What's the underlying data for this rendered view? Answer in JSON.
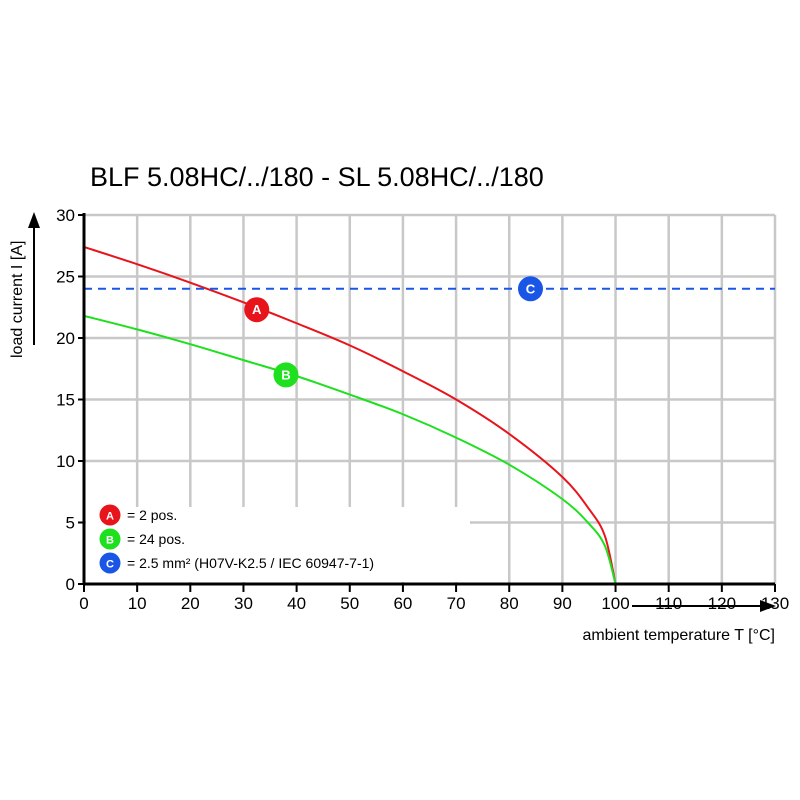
{
  "chart_data": {
    "type": "line",
    "title": "BLF 5.08HC/../180 - SL 5.08HC/../180",
    "xlabel": "ambient temperature T [°C]",
    "ylabel": "load current I [A]",
    "xlim": [
      0,
      130
    ],
    "ylim": [
      0,
      30
    ],
    "xticks": [
      0,
      10,
      20,
      30,
      40,
      50,
      60,
      70,
      80,
      90,
      100,
      110,
      120,
      130
    ],
    "yticks": [
      0,
      5,
      10,
      15,
      20,
      25,
      30
    ],
    "grid": true,
    "legend_position": "bottom-left",
    "series": [
      {
        "marker": "A",
        "color": "#e8141b",
        "x": [
          0,
          10,
          20,
          30,
          40,
          50,
          60,
          70,
          80,
          90,
          95,
          98,
          100
        ],
        "y": [
          27.4,
          26.0,
          24.5,
          22.9,
          21.2,
          19.4,
          17.3,
          15.0,
          12.2,
          8.7,
          6.1,
          3.9,
          0
        ]
      },
      {
        "marker": "B",
        "color": "#1ee01e",
        "x": [
          0,
          10,
          20,
          30,
          40,
          50,
          60,
          70,
          80,
          90,
          95,
          98,
          100
        ],
        "y": [
          21.8,
          20.7,
          19.5,
          18.2,
          16.9,
          15.4,
          13.8,
          11.9,
          9.7,
          6.9,
          4.9,
          3.1,
          0
        ]
      },
      {
        "marker": "C",
        "color": "#1a56e6",
        "dashed": true,
        "x": [
          0,
          130
        ],
        "y": [
          24,
          24
        ]
      }
    ],
    "markers": [
      {
        "label": "A",
        "x": 32.5,
        "y": 22.3,
        "color": "#e8141b"
      },
      {
        "label": "B",
        "x": 38,
        "y": 17,
        "color": "#1ee01e"
      },
      {
        "label": "C",
        "x": 84,
        "y": 24,
        "color": "#1a56e6"
      }
    ],
    "legend": [
      {
        "label": "A",
        "text": "= 2 pos.",
        "color": "#e8141b"
      },
      {
        "label": "B",
        "text": "= 24 pos.",
        "color": "#1ee01e"
      },
      {
        "label": "C",
        "text": "= 2.5 mm² (H07V-K2.5 / IEC 60947-7-1)",
        "color": "#1a56e6"
      }
    ]
  }
}
